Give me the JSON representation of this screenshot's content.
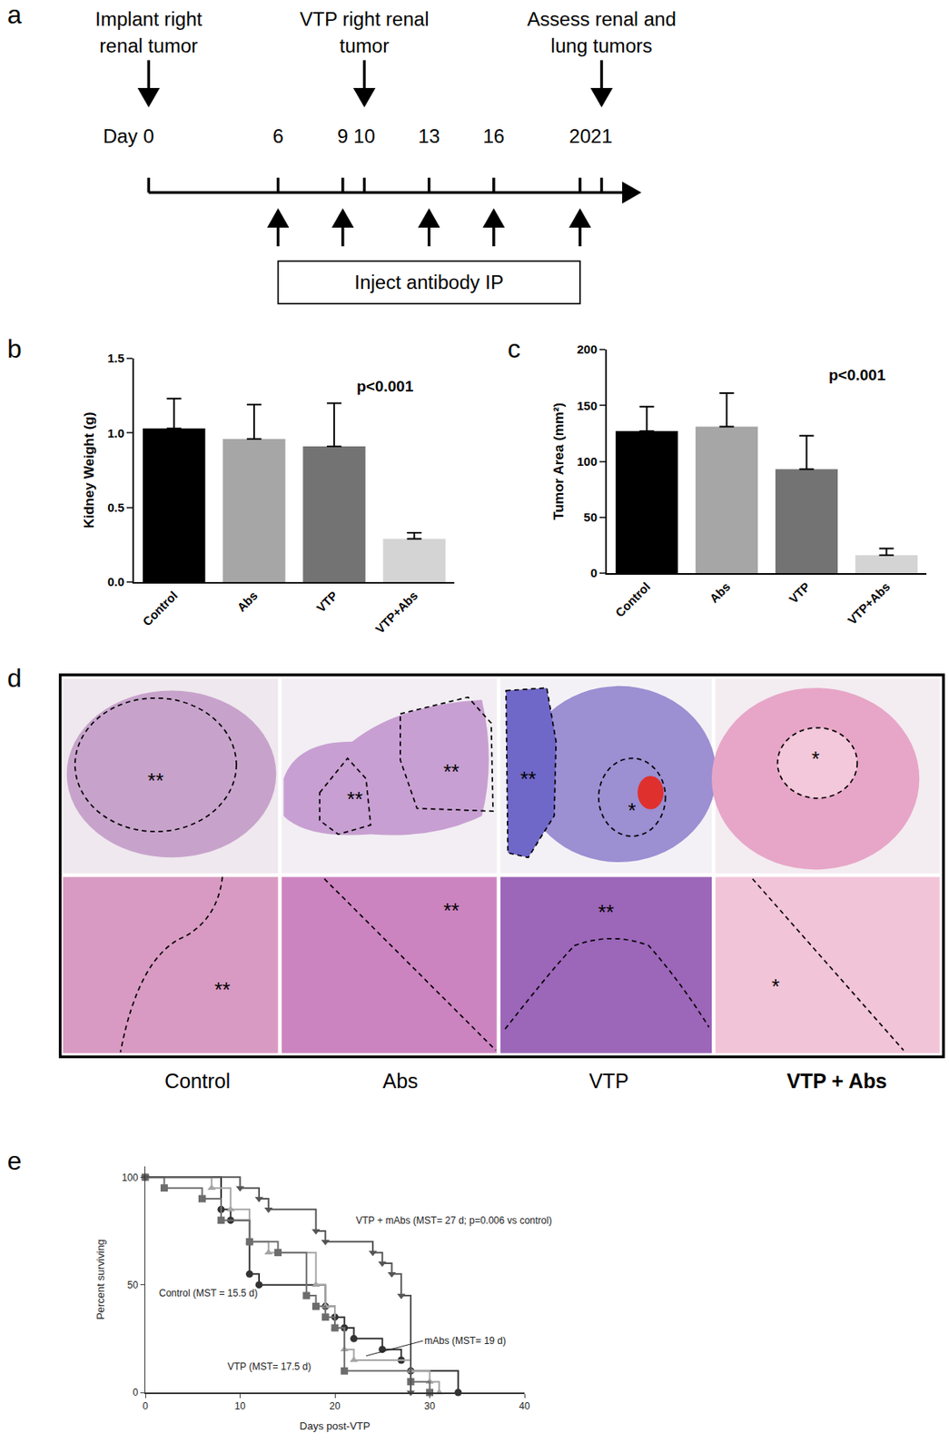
{
  "timeline": {
    "panel": "a",
    "day_label": "Day",
    "days": [
      0,
      6,
      9,
      10,
      13,
      16,
      20,
      21
    ],
    "events": [
      {
        "day": 0,
        "text": [
          "Implant right",
          "renal tumor"
        ]
      },
      {
        "day": 10,
        "text": [
          "VTP right renal",
          "tumor"
        ]
      },
      {
        "day": 21,
        "text": [
          "Assess renal and",
          "lung tumors"
        ]
      }
    ],
    "injections": {
      "days": [
        6,
        9,
        13,
        16,
        20
      ],
      "text": "Inject antibody IP"
    }
  },
  "chart_data": [
    {
      "type": "bar",
      "panel": "b",
      "y_label": "Kidney Weight (g)",
      "categories": [
        "Control",
        "Abs",
        "VTP",
        "VTP+Abs"
      ],
      "values": [
        1.03,
        0.96,
        0.91,
        0.29
      ],
      "error": [
        0.2,
        0.23,
        0.29,
        0.04
      ],
      "colors": [
        "#000000",
        "#a6a6a6",
        "#737373",
        "#d4d4d4"
      ],
      "ylim": [
        0,
        1.5
      ],
      "yticks": [
        {
          "value": 0,
          "label": "0.0"
        },
        {
          "value": 0.5,
          "label": "0.5"
        },
        {
          "value": 1,
          "label": "1.0"
        },
        {
          "value": 1.5,
          "label": "1.5"
        }
      ],
      "annotations": [
        "p<0.001"
      ],
      "grid": false,
      "legend": false
    },
    {
      "type": "bar",
      "panel": "c",
      "y_label": "Tumor Area (mm²)",
      "categories": [
        "Control",
        "Abs",
        "VTP",
        "VTP+Abs"
      ],
      "values": [
        127,
        131,
        93,
        16
      ],
      "error": [
        22,
        30,
        30,
        6
      ],
      "colors": [
        "#000000",
        "#a6a6a6",
        "#737373",
        "#d4d4d4"
      ],
      "ylim": [
        0,
        200
      ],
      "yticks": [
        0,
        50,
        100,
        150,
        200
      ],
      "annotations": [
        "p<0.001"
      ],
      "grid": false,
      "legend": false
    },
    {
      "type": "line",
      "panel": "e",
      "x_label": "Days post-VTP",
      "y_label": "Percent surviving",
      "xlim": [
        0,
        40
      ],
      "xticks": [
        0,
        10,
        20,
        30,
        40
      ],
      "ylim": [
        0,
        105
      ],
      "yticks": [
        0,
        50,
        100
      ],
      "grid": false,
      "legend": false,
      "series": [
        {
          "name": "Control (MST = 15.5 d)",
          "color": "#333333",
          "marker": "circle",
          "line_style": "step",
          "x": [
            0,
            8,
            9,
            11,
            12,
            19,
            20,
            21,
            22,
            25,
            27,
            28,
            33
          ],
          "values": [
            100,
            85,
            80,
            55,
            50,
            40,
            35,
            30,
            25,
            20,
            15,
            10,
            0
          ]
        },
        {
          "name": "mAbs (MST= 19 d)",
          "color": "#a5a5a5",
          "marker": "triangle-up",
          "line_style": "step",
          "x": [
            0,
            7,
            9,
            11,
            13,
            18,
            19,
            20,
            21,
            22,
            28,
            30,
            31
          ],
          "values": [
            100,
            95,
            85,
            70,
            65,
            50,
            40,
            30,
            20,
            15,
            10,
            5,
            0
          ]
        },
        {
          "name": "VTP (MST= 17.5 d)",
          "color": "#6d6d6d",
          "marker": "square",
          "line_style": "step",
          "x": [
            0,
            2,
            6,
            8,
            11,
            14,
            17,
            18,
            19,
            20,
            21,
            28,
            30
          ],
          "values": [
            100,
            95,
            90,
            80,
            70,
            65,
            45,
            40,
            35,
            30,
            10,
            5,
            0
          ]
        },
        {
          "name": "VTP + mAbs (MST= 27 d; p=0.006 vs control)",
          "color": "#555555",
          "marker": "triangle-down",
          "line_style": "step",
          "x": [
            0,
            10,
            12,
            13,
            18,
            19,
            24,
            25,
            26,
            27,
            28
          ],
          "values": [
            100,
            95,
            90,
            85,
            75,
            70,
            65,
            60,
            55,
            45,
            0
          ]
        }
      ]
    }
  ],
  "histology": {
    "panel": "d",
    "columns": [
      {
        "name": "Control",
        "top_marks": [
          "**"
        ],
        "bottom_marks": [
          "**"
        ]
      },
      {
        "name": "Abs",
        "top_marks": [
          "**",
          "**"
        ],
        "bottom_marks": [
          "**"
        ]
      },
      {
        "name": "VTP",
        "top_marks": [
          "**",
          "*"
        ],
        "bottom_marks": [
          "**"
        ]
      },
      {
        "name": "VTP + Abs",
        "top_marks": [
          "*"
        ],
        "bottom_marks": [
          "*"
        ]
      }
    ]
  }
}
